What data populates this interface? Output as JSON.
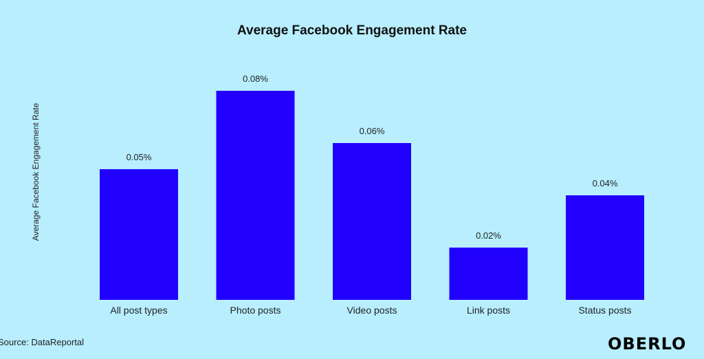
{
  "chart_data": {
    "type": "bar",
    "title": "Average Facebook Engagement Rate",
    "ylabel": "Average Facebook Engagement Rate",
    "xlabel": "",
    "categories": [
      "All post types",
      "Photo posts",
      "Video posts",
      "Link posts",
      "Status posts"
    ],
    "values": [
      0.05,
      0.08,
      0.06,
      0.02,
      0.04
    ],
    "data_labels": [
      "0.05%",
      "0.08%",
      "0.06%",
      "0.02%",
      "0.04%"
    ],
    "unit": "%",
    "ylim": [
      0,
      0.08
    ],
    "grid": false,
    "bar_color": "#2200fe",
    "background_color": "#b8eefe"
  },
  "footer": {
    "source": "Source: DataReportal",
    "logo": "OBERLO"
  }
}
